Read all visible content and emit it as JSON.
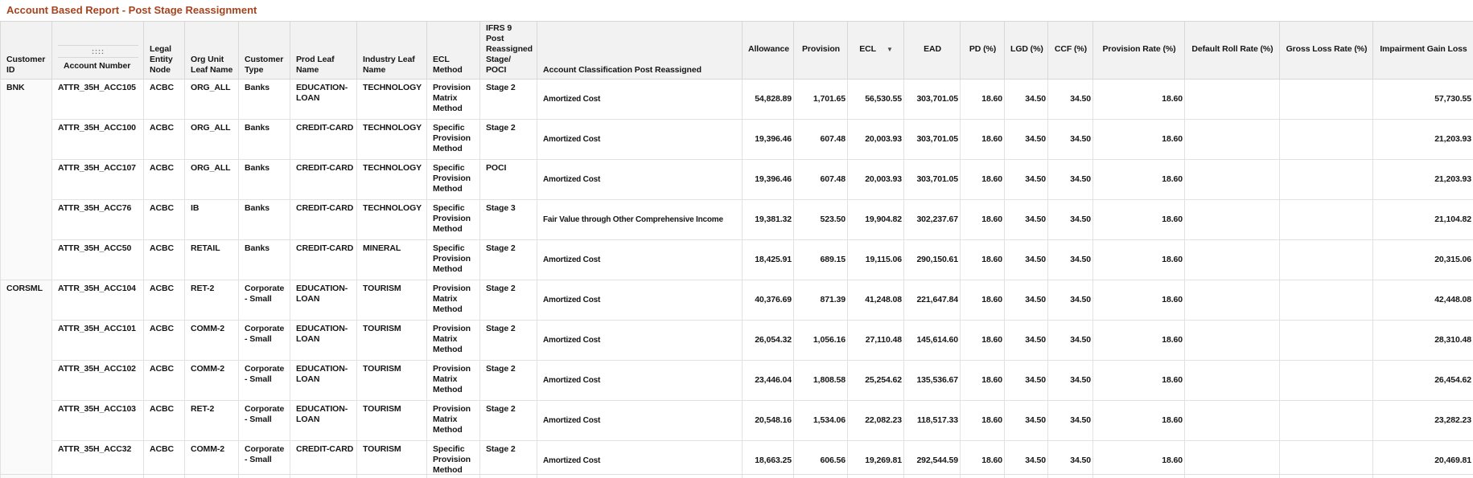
{
  "header": {
    "title": "Account Based Report - Post Stage Reassignment"
  },
  "colors": {
    "title_text": "#a6431f",
    "header_bg": "#f2f2f2",
    "grid_line": "#e2e2e2",
    "header_grid_line": "#d8d8d8",
    "body_text": "#161616"
  },
  "icons": {
    "sort-dropdown-icon": "▼",
    "drag-handle-icon": "::::"
  },
  "table": {
    "sorted_column": "ecl",
    "columns": [
      {
        "key": "customer_id",
        "label": "Customer ID"
      },
      {
        "key": "account_number",
        "label": "Account Number"
      },
      {
        "key": "legal_entity",
        "label": "Legal Entity Node"
      },
      {
        "key": "org_unit",
        "label": "Org Unit Leaf Name"
      },
      {
        "key": "customer_type",
        "label": "Customer Type"
      },
      {
        "key": "prod_leaf",
        "label": "Prod Leaf Name"
      },
      {
        "key": "industry_leaf",
        "label": "Industry Leaf Name"
      },
      {
        "key": "ecl_method",
        "label": "ECL Method"
      },
      {
        "key": "stage",
        "label": "IFRS 9 Post Reassigned Stage/ POCI"
      },
      {
        "key": "classification",
        "label": "Account Classification Post Reassigned"
      },
      {
        "key": "allowance",
        "label": "Allowance"
      },
      {
        "key": "provision",
        "label": "Provision"
      },
      {
        "key": "ecl",
        "label": "ECL"
      },
      {
        "key": "ead",
        "label": "EAD"
      },
      {
        "key": "pd",
        "label": "PD (%)"
      },
      {
        "key": "lgd",
        "label": "LGD (%)"
      },
      {
        "key": "ccf",
        "label": "CCF (%)"
      },
      {
        "key": "provision_rate",
        "label": "Provision Rate (%)"
      },
      {
        "key": "default_roll_rate",
        "label": "Default Roll Rate (%)"
      },
      {
        "key": "gross_loss_rate",
        "label": "Gross Loss Rate (%)"
      },
      {
        "key": "impairment_gain_loss",
        "label": "Impairment Gain Loss"
      }
    ],
    "rows": [
      {
        "customer_id": "BNK",
        "account_number": "ATTR_35H_ACC105",
        "legal_entity": "ACBC",
        "org_unit": "ORG_ALL",
        "customer_type": "Banks",
        "prod_leaf": "EDUCATION-LOAN",
        "industry_leaf": "TECHNOLOGY",
        "ecl_method": "Provision Matrix Method",
        "stage": "Stage 2",
        "classification": "Amortized Cost",
        "allowance": "54,828.89",
        "provision": "1,701.65",
        "ecl": "56,530.55",
        "ead": "303,701.05",
        "pd": "18.60",
        "lgd": "34.50",
        "ccf": "34.50",
        "provision_rate": "18.60",
        "default_roll_rate": "",
        "gross_loss_rate": "",
        "impairment_gain_loss": "57,730.55"
      },
      {
        "customer_id": "",
        "account_number": "ATTR_35H_ACC100",
        "legal_entity": "ACBC",
        "org_unit": "ORG_ALL",
        "customer_type": "Banks",
        "prod_leaf": "CREDIT-CARD",
        "industry_leaf": "TECHNOLOGY",
        "ecl_method": "Specific Provision Method",
        "stage": "Stage 2",
        "classification": "Amortized Cost",
        "allowance": "19,396.46",
        "provision": "607.48",
        "ecl": "20,003.93",
        "ead": "303,701.05",
        "pd": "18.60",
        "lgd": "34.50",
        "ccf": "34.50",
        "provision_rate": "18.60",
        "default_roll_rate": "",
        "gross_loss_rate": "",
        "impairment_gain_loss": "21,203.93"
      },
      {
        "customer_id": "",
        "account_number": "ATTR_35H_ACC107",
        "legal_entity": "ACBC",
        "org_unit": "ORG_ALL",
        "customer_type": "Banks",
        "prod_leaf": "CREDIT-CARD",
        "industry_leaf": "TECHNOLOGY",
        "ecl_method": "Specific Provision Method",
        "stage": "POCI",
        "classification": "Amortized Cost",
        "allowance": "19,396.46",
        "provision": "607.48",
        "ecl": "20,003.93",
        "ead": "303,701.05",
        "pd": "18.60",
        "lgd": "34.50",
        "ccf": "34.50",
        "provision_rate": "18.60",
        "default_roll_rate": "",
        "gross_loss_rate": "",
        "impairment_gain_loss": "21,203.93"
      },
      {
        "customer_id": "",
        "account_number": "ATTR_35H_ACC76",
        "legal_entity": "ACBC",
        "org_unit": "IB",
        "customer_type": "Banks",
        "prod_leaf": "CREDIT-CARD",
        "industry_leaf": "TECHNOLOGY",
        "ecl_method": "Specific Provision Method",
        "stage": "Stage 3",
        "classification": "Fair Value through Other Comprehensive Income",
        "allowance": "19,381.32",
        "provision": "523.50",
        "ecl": "19,904.82",
        "ead": "302,237.67",
        "pd": "18.60",
        "lgd": "34.50",
        "ccf": "34.50",
        "provision_rate": "18.60",
        "default_roll_rate": "",
        "gross_loss_rate": "",
        "impairment_gain_loss": "21,104.82"
      },
      {
        "customer_id": "",
        "account_number": "ATTR_35H_ACC50",
        "legal_entity": "ACBC",
        "org_unit": "RETAIL",
        "customer_type": "Banks",
        "prod_leaf": "CREDIT-CARD",
        "industry_leaf": "MINERAL",
        "ecl_method": "Specific Provision Method",
        "stage": "Stage 2",
        "classification": "Amortized Cost",
        "allowance": "18,425.91",
        "provision": "689.15",
        "ecl": "19,115.06",
        "ead": "290,150.61",
        "pd": "18.60",
        "lgd": "34.50",
        "ccf": "34.50",
        "provision_rate": "18.60",
        "default_roll_rate": "",
        "gross_loss_rate": "",
        "impairment_gain_loss": "20,315.06"
      },
      {
        "customer_id": "CORSML",
        "account_number": "ATTR_35H_ACC104",
        "legal_entity": "ACBC",
        "org_unit": "RET-2",
        "customer_type": "Corporate - Small",
        "prod_leaf": "EDUCATION-LOAN",
        "industry_leaf": "TOURISM",
        "ecl_method": "Provision Matrix Method",
        "stage": "Stage 2",
        "classification": "Amortized Cost",
        "allowance": "40,376.69",
        "provision": "871.39",
        "ecl": "41,248.08",
        "ead": "221,647.84",
        "pd": "18.60",
        "lgd": "34.50",
        "ccf": "34.50",
        "provision_rate": "18.60",
        "default_roll_rate": "",
        "gross_loss_rate": "",
        "impairment_gain_loss": "42,448.08"
      },
      {
        "customer_id": "",
        "account_number": "ATTR_35H_ACC101",
        "legal_entity": "ACBC",
        "org_unit": "COMM-2",
        "customer_type": "Corporate - Small",
        "prod_leaf": "EDUCATION-LOAN",
        "industry_leaf": "TOURISM",
        "ecl_method": "Provision Matrix Method",
        "stage": "Stage 2",
        "classification": "Amortized Cost",
        "allowance": "26,054.32",
        "provision": "1,056.16",
        "ecl": "27,110.48",
        "ead": "145,614.60",
        "pd": "18.60",
        "lgd": "34.50",
        "ccf": "34.50",
        "provision_rate": "18.60",
        "default_roll_rate": "",
        "gross_loss_rate": "",
        "impairment_gain_loss": "28,310.48"
      },
      {
        "customer_id": "",
        "account_number": "ATTR_35H_ACC102",
        "legal_entity": "ACBC",
        "org_unit": "COMM-2",
        "customer_type": "Corporate - Small",
        "prod_leaf": "EDUCATION-LOAN",
        "industry_leaf": "TOURISM",
        "ecl_method": "Provision Matrix Method",
        "stage": "Stage 2",
        "classification": "Amortized Cost",
        "allowance": "23,446.04",
        "provision": "1,808.58",
        "ecl": "25,254.62",
        "ead": "135,536.67",
        "pd": "18.60",
        "lgd": "34.50",
        "ccf": "34.50",
        "provision_rate": "18.60",
        "default_roll_rate": "",
        "gross_loss_rate": "",
        "impairment_gain_loss": "26,454.62"
      },
      {
        "customer_id": "",
        "account_number": "ATTR_35H_ACC103",
        "legal_entity": "ACBC",
        "org_unit": "RET-2",
        "customer_type": "Corporate - Small",
        "prod_leaf": "EDUCATION-LOAN",
        "industry_leaf": "TOURISM",
        "ecl_method": "Provision Matrix Method",
        "stage": "Stage 2",
        "classification": "Amortized Cost",
        "allowance": "20,548.16",
        "provision": "1,534.06",
        "ecl": "22,082.23",
        "ead": "118,517.33",
        "pd": "18.60",
        "lgd": "34.50",
        "ccf": "34.50",
        "provision_rate": "18.60",
        "default_roll_rate": "",
        "gross_loss_rate": "",
        "impairment_gain_loss": "23,282.23"
      },
      {
        "customer_id": "",
        "account_number": "ATTR_35H_ACC32",
        "legal_entity": "ACBC",
        "org_unit": "COMM-2",
        "customer_type": "Corporate - Small",
        "prod_leaf": "CREDIT-CARD",
        "industry_leaf": "TOURISM",
        "ecl_method": "Specific Provision Method",
        "stage": "Stage 2",
        "classification": "Amortized Cost",
        "allowance": "18,663.25",
        "provision": "606.56",
        "ecl": "19,269.81",
        "ead": "292,544.59",
        "pd": "18.60",
        "lgd": "34.50",
        "ccf": "34.50",
        "provision_rate": "18.60",
        "default_roll_rate": "",
        "gross_loss_rate": "",
        "impairment_gain_loss": "20,469.81"
      }
    ]
  }
}
